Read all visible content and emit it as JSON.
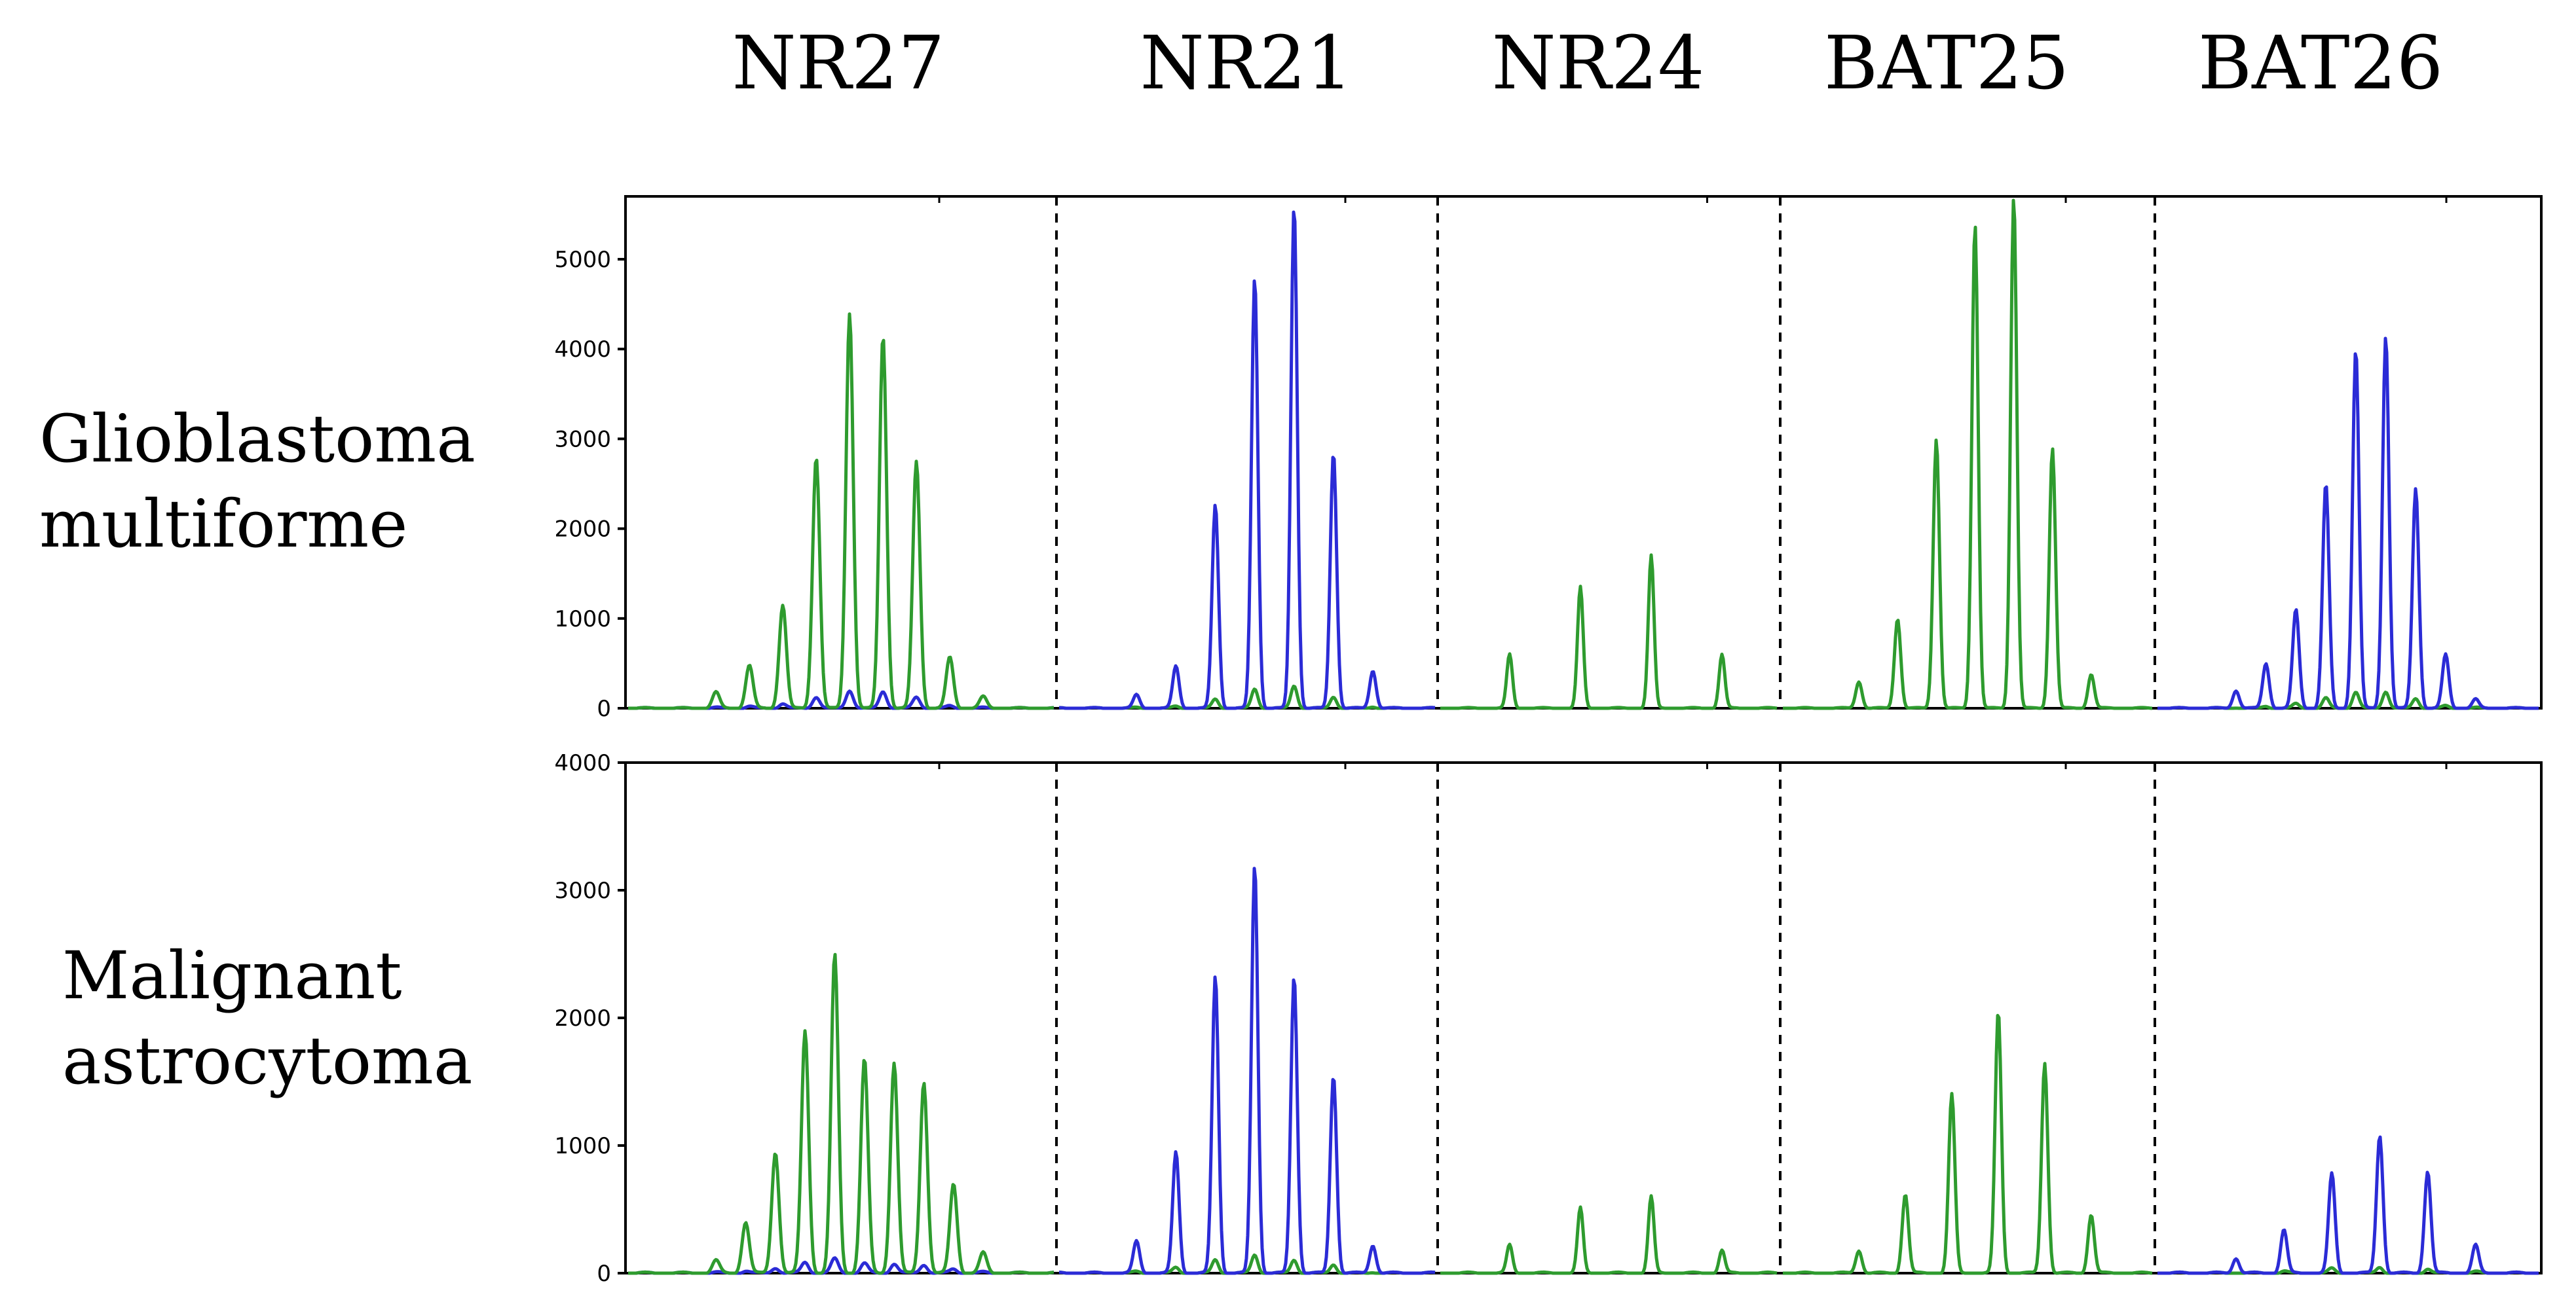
{
  "colors": {
    "green": "#2e9b2e",
    "blue": "#2b2bd6",
    "axis": "#000000"
  },
  "markers": [
    "NR27",
    "NR21",
    "NR24",
    "BAT25",
    "BAT26"
  ],
  "chart_data": [
    {
      "type": "line",
      "title": "",
      "row_label": [
        "Glioblastoma",
        "multiforme"
      ],
      "ylim": [
        0,
        5700
      ],
      "yticks": [
        "0",
        "1000",
        "2000",
        "3000",
        "4000",
        "5000"
      ],
      "ytick_values": [
        0,
        1000,
        2000,
        3000,
        4000,
        5000
      ],
      "grid": false,
      "panels": [
        {
          "marker": "NR27",
          "color": "green",
          "peaks": [
            180,
            480,
            1150,
            2800,
            4400,
            4150,
            2750,
            570,
            130
          ],
          "secondary": "blue"
        },
        {
          "marker": "NR21",
          "color": "blue",
          "peaks": [
            150,
            470,
            2270,
            4800,
            5600,
            2850,
            420
          ],
          "secondary": "green"
        },
        {
          "marker": "NR24",
          "color": "green",
          "peaks": [
            600,
            1350,
            1700,
            600
          ]
        },
        {
          "marker": "BAT25",
          "color": "green",
          "peaks": [
            300,
            1000,
            3000,
            5400,
            5700,
            2900,
            380
          ]
        },
        {
          "marker": "BAT26",
          "color": "blue",
          "peaks": [
            200,
            500,
            1100,
            2500,
            4000,
            4150,
            2450,
            600,
            100
          ],
          "secondary": "green"
        }
      ]
    },
    {
      "type": "line",
      "title": "",
      "row_label": [
        "Malignant",
        "astrocytoma"
      ],
      "ylim": [
        0,
        4000
      ],
      "yticks": [
        "0",
        "1000",
        "2000",
        "3000",
        "4000"
      ],
      "ytick_values": [
        0,
        1000,
        2000,
        3000,
        4000
      ],
      "grid": false,
      "panels": [
        {
          "marker": "NR27",
          "color": "green",
          "peaks": [
            100,
            400,
            950,
            1900,
            2500,
            1680,
            1650,
            1500,
            700,
            160
          ],
          "secondary": "blue"
        },
        {
          "marker": "NR21",
          "color": "blue",
          "peaks": [
            250,
            950,
            2330,
            3200,
            2330,
            1550,
            220
          ],
          "secondary": "green"
        },
        {
          "marker": "NR24",
          "color": "green",
          "peaks": [
            220,
            510,
            600,
            180
          ]
        },
        {
          "marker": "BAT25",
          "color": "green",
          "peaks": [
            180,
            620,
            1400,
            2050,
            1650,
            460
          ]
        },
        {
          "marker": "BAT26",
          "color": "blue",
          "peaks": [
            120,
            340,
            780,
            1080,
            800,
            220
          ],
          "secondary": "green"
        }
      ]
    }
  ]
}
